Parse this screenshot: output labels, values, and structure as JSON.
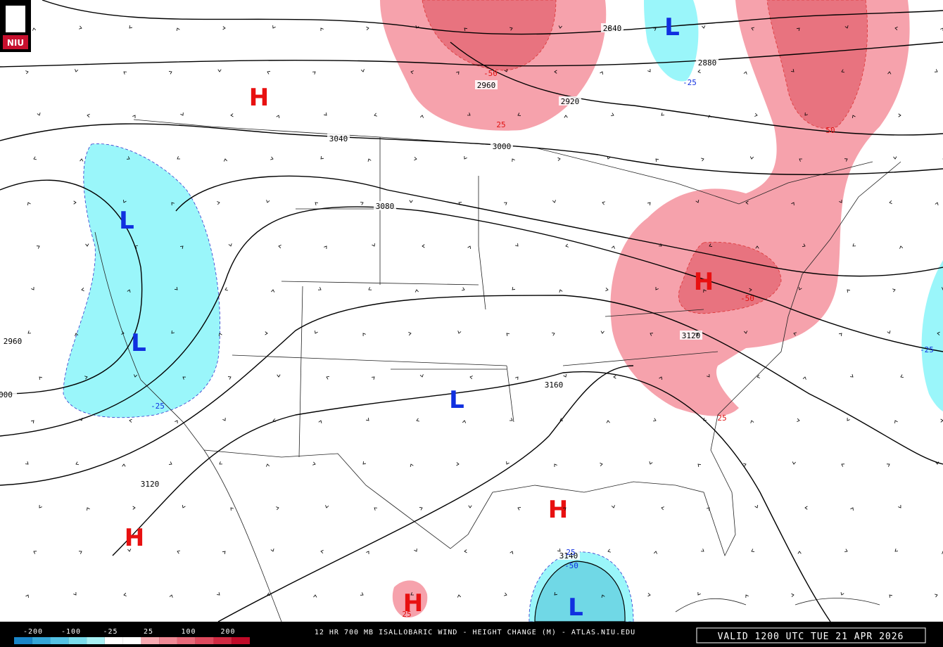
{
  "logo": "NIU",
  "title": "12 HR 700 MB ISALLOBARIC WIND - HEIGHT CHANGE (M) - ATLAS.NIU.EDU",
  "valid_time": "VALID 1200 UTC TUE 21 APR 2026",
  "colorbar_labels": [
    "-200",
    "-100",
    "-25",
    "25",
    "100",
    "200"
  ],
  "centers": [
    "H",
    "H",
    "H",
    "H",
    "H",
    "L",
    "L",
    "L",
    "L",
    "L"
  ],
  "height_contour_labels": [
    "2840",
    "2880",
    "2960",
    "2920",
    "3040",
    "3000",
    "3080",
    "2960",
    "000",
    "3120",
    "3160",
    "3120",
    "3140"
  ],
  "height_change_labels": [
    "-50",
    "25",
    "-25",
    "-25",
    "50",
    "-50",
    "-25",
    "25",
    "25",
    "25",
    "-50"
  ]
}
